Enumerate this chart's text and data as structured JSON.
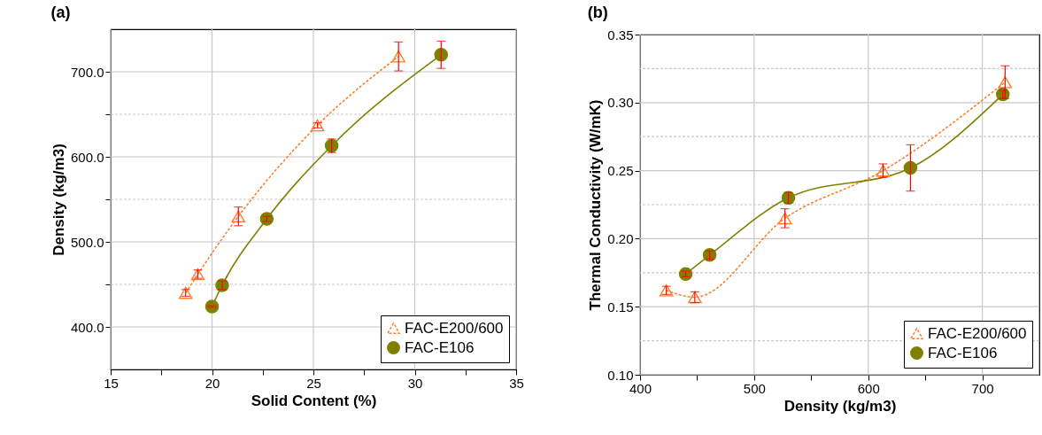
{
  "chart_data": [
    {
      "type": "line",
      "title": "(a)",
      "xlabel": "Solid Content (%)",
      "ylabel": "Density (kg/m3)",
      "xlim": [
        15,
        35
      ],
      "xticks": [
        15,
        {
          "value": 17.5,
          "label": null
        },
        20,
        {
          "value": 22.5,
          "label": null
        },
        25,
        {
          "value": 27.5,
          "label": null
        },
        30,
        {
          "value": 32.5,
          "label": null
        },
        35
      ],
      "ylim": [
        350,
        750
      ],
      "yticks": [
        {
          "value": 400,
          "label": "400.0"
        },
        {
          "value": 450,
          "label": null
        },
        {
          "value": 500,
          "label": "500.0"
        },
        {
          "value": 550,
          "label": null
        },
        {
          "value": 600,
          "label": "600.0"
        },
        {
          "value": 650,
          "label": null
        },
        {
          "value": 700,
          "label": "700.0"
        }
      ],
      "grid": true,
      "legend": "bottom right",
      "series": [
        {
          "name": "FAC-E200/600",
          "color": "#ff7f27",
          "marker": "triangle",
          "line_style": "dashed",
          "x": [
            18.7,
            19.3,
            21.3,
            25.2,
            29.2
          ],
          "values": [
            440,
            462,
            530,
            637,
            718
          ],
          "errors": [
            4,
            5,
            11,
            3,
            17
          ]
        },
        {
          "name": "FAC-E106",
          "color": "#808000",
          "marker": "circle",
          "line_style": "solid",
          "x": [
            20.0,
            20.5,
            22.7,
            25.9,
            31.3
          ],
          "values": [
            424,
            449,
            527,
            613,
            720
          ],
          "errors": [
            1,
            5,
            3,
            8,
            16
          ]
        }
      ]
    },
    {
      "type": "line",
      "title": "(b)",
      "xlabel": "Density (kg/m3)",
      "ylabel": "Thermal Conductivity (W/mK)",
      "xlim": [
        400,
        750
      ],
      "xticks": [
        400,
        {
          "value": 450,
          "label": null
        },
        500,
        {
          "value": 550,
          "label": null
        },
        600,
        {
          "value": 650,
          "label": null
        },
        700
      ],
      "ylim": [
        0.1,
        0.35
      ],
      "yticks": [
        {
          "value": 0.1,
          "label": "0.10"
        },
        {
          "value": 0.125,
          "label": null
        },
        {
          "value": 0.15,
          "label": "0.15"
        },
        {
          "value": 0.175,
          "label": null
        },
        {
          "value": 0.2,
          "label": "0.20"
        },
        {
          "value": 0.225,
          "label": null
        },
        {
          "value": 0.25,
          "label": "0.25"
        },
        {
          "value": 0.275,
          "label": null
        },
        {
          "value": 0.3,
          "label": "0.30"
        },
        {
          "value": 0.325,
          "label": null
        },
        {
          "value": 0.35,
          "label": "0.35"
        }
      ],
      "grid": true,
      "legend": "bottom right",
      "series": [
        {
          "name": "FAC-E200/600",
          "color": "#ff7f27",
          "marker": "triangle",
          "line_style": "dashed",
          "x": [
            423,
            448,
            527,
            613,
            720
          ],
          "values": [
            0.162,
            0.157,
            0.215,
            0.25,
            0.315
          ],
          "errors": [
            0.003,
            0.004,
            0.007,
            0.005,
            0.012
          ]
        },
        {
          "name": "FAC-E106",
          "color": "#808000",
          "marker": "circle",
          "line_style": "solid",
          "x": [
            440,
            461,
            530,
            637,
            718
          ],
          "values": [
            0.174,
            0.188,
            0.23,
            0.252,
            0.306
          ],
          "errors": [
            0.002,
            0.003,
            0.004,
            0.017,
            0.003
          ]
        }
      ]
    }
  ]
}
